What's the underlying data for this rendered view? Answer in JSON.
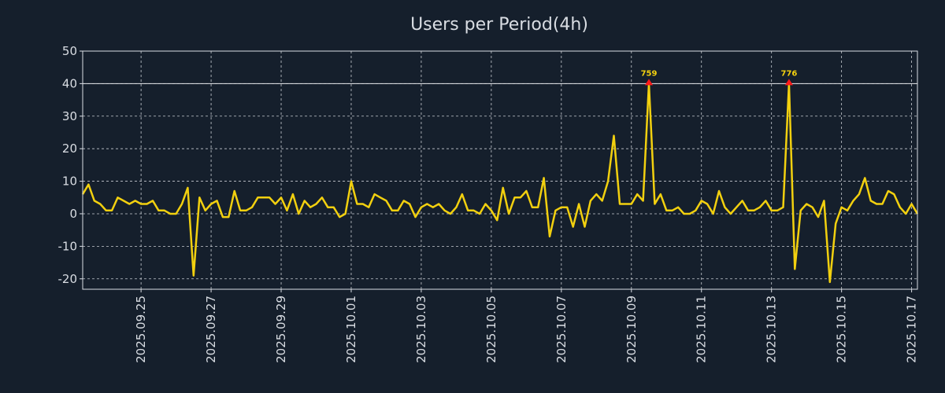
{
  "colors": {
    "background": "#151f2c",
    "line": "#f2d00f",
    "marker": "#ff1a1a",
    "grid": "#c8ccd2",
    "text": "#d9dde3"
  },
  "chart_data": {
    "type": "line",
    "title": "Users per Period(4h)",
    "xlabel": "",
    "ylabel": "",
    "start": "2025-09-23T08:00",
    "interval_hours": 4,
    "ylim": [
      -23.2,
      50
    ],
    "yticks": [
      50,
      40,
      30,
      20,
      10,
      0,
      -10,
      -20
    ],
    "ytick_labels": [
      "50",
      "40",
      "30",
      "20",
      "10",
      "0",
      "-10",
      "-20"
    ],
    "xticks": [
      "2025-09-25",
      "2025-09-27",
      "2025-09-29",
      "2025-10-01",
      "2025-10-03",
      "2025-10-05",
      "2025-10-07",
      "2025-10-09",
      "2025-10-11",
      "2025-10-13",
      "2025-10-15",
      "2025-10-17"
    ],
    "xtick_labels": [
      "2025.09.25",
      "2025.09.27",
      "2025.09.29",
      "2025.10.01",
      "2025.10.03",
      "2025.10.05",
      "2025.10.07",
      "2025.10.09",
      "2025.10.11",
      "2025.10.13",
      "2025.10.15",
      "2025.10.17"
    ],
    "grid": true,
    "series": [
      {
        "name": "Users",
        "values": [
          6,
          9,
          4,
          3,
          1,
          1,
          5,
          4,
          3,
          4,
          3,
          3,
          4,
          1,
          1,
          0,
          0,
          3,
          8,
          -19,
          5,
          1,
          3,
          4,
          -1,
          -1,
          7,
          1,
          1,
          2,
          5,
          5,
          5,
          3,
          5,
          1,
          6,
          0,
          4,
          2,
          3,
          5,
          2,
          2,
          -1,
          0,
          10,
          3,
          3,
          2,
          6,
          5,
          4,
          1,
          1,
          4,
          3,
          -1,
          2,
          3,
          2,
          3,
          1,
          0,
          2,
          6,
          1,
          1,
          0,
          3,
          1,
          -2,
          8,
          0,
          5,
          5,
          7,
          2,
          2,
          11,
          -7,
          1,
          2,
          2,
          -4,
          3,
          -4,
          4,
          6,
          4,
          10,
          24,
          3,
          3,
          3,
          6,
          4,
          40,
          3,
          6,
          1,
          1,
          2,
          0,
          0,
          1,
          4,
          3,
          0,
          7,
          2,
          0,
          2,
          4,
          1,
          1,
          2,
          4,
          1,
          1,
          2,
          40,
          -17,
          1,
          3,
          2,
          -1,
          4,
          -21,
          -3,
          2,
          1,
          4,
          6,
          11,
          4,
          3,
          3,
          7,
          6,
          2,
          0,
          3,
          0
        ]
      }
    ],
    "reference_line": 40,
    "annotations": [
      {
        "index": 97,
        "value": 40,
        "label": "759"
      },
      {
        "index": 121,
        "value": 40,
        "label": "776"
      }
    ]
  }
}
